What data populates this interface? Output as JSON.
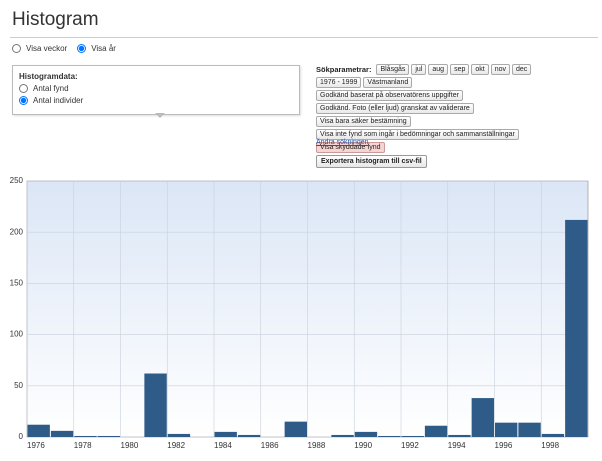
{
  "header": {
    "title": "Histogram"
  },
  "view_options": [
    {
      "label": "Visa veckor",
      "selected": false
    },
    {
      "label": "Visa år",
      "selected": true
    }
  ],
  "histogram_data": {
    "title": "Histogramdata:",
    "options": [
      {
        "label": "Antal fynd",
        "selected": false
      },
      {
        "label": "Antal individer",
        "selected": true
      }
    ]
  },
  "search_params": {
    "title": "Sökparametrar:",
    "rows": [
      [
        "Blåsgås",
        "jul",
        "aug",
        "sep",
        "okt",
        "nov",
        "dec"
      ],
      [
        "1976 - 1999",
        "Västmanland"
      ],
      [
        "Godkänd baserat på observatörens uppgifter"
      ],
      [
        "Godkänd. Foto (eller ljud) granskat av validerare"
      ],
      [
        "Visa bara säker bestämning"
      ],
      [
        "Visa inte fynd som ingår i bedömningar och sammanställningar"
      ]
    ],
    "warning_tag": "Visa skyddade fynd"
  },
  "change_link": "Ändra sökningen",
  "export_button": "Exportera histogram till csv-fil",
  "chart_data": {
    "type": "histogram",
    "bins": [
      1976,
      1977,
      1978,
      1979,
      1980,
      1981,
      1982,
      1983,
      1984,
      1985,
      1986,
      1987,
      1988,
      1989,
      1990,
      1991,
      1992,
      1993,
      1994,
      1995,
      1996,
      1997,
      1998,
      1999,
      2000
    ],
    "values": [
      12,
      6,
      1,
      1,
      0,
      62,
      3,
      0,
      5,
      2,
      0,
      15,
      0,
      2,
      5,
      1,
      1,
      11,
      2,
      38,
      14,
      14,
      3,
      212
    ],
    "color": "#2f5b88",
    "xlim": [
      1976,
      2000
    ],
    "xticks": [
      1976,
      1978,
      1980,
      1982,
      1984,
      1986,
      1988,
      1990,
      1992,
      1994,
      1996,
      1998
    ],
    "ylim": [
      0,
      250
    ],
    "yticks": [
      0,
      50,
      100,
      150,
      200,
      250
    ],
    "grid": true
  }
}
